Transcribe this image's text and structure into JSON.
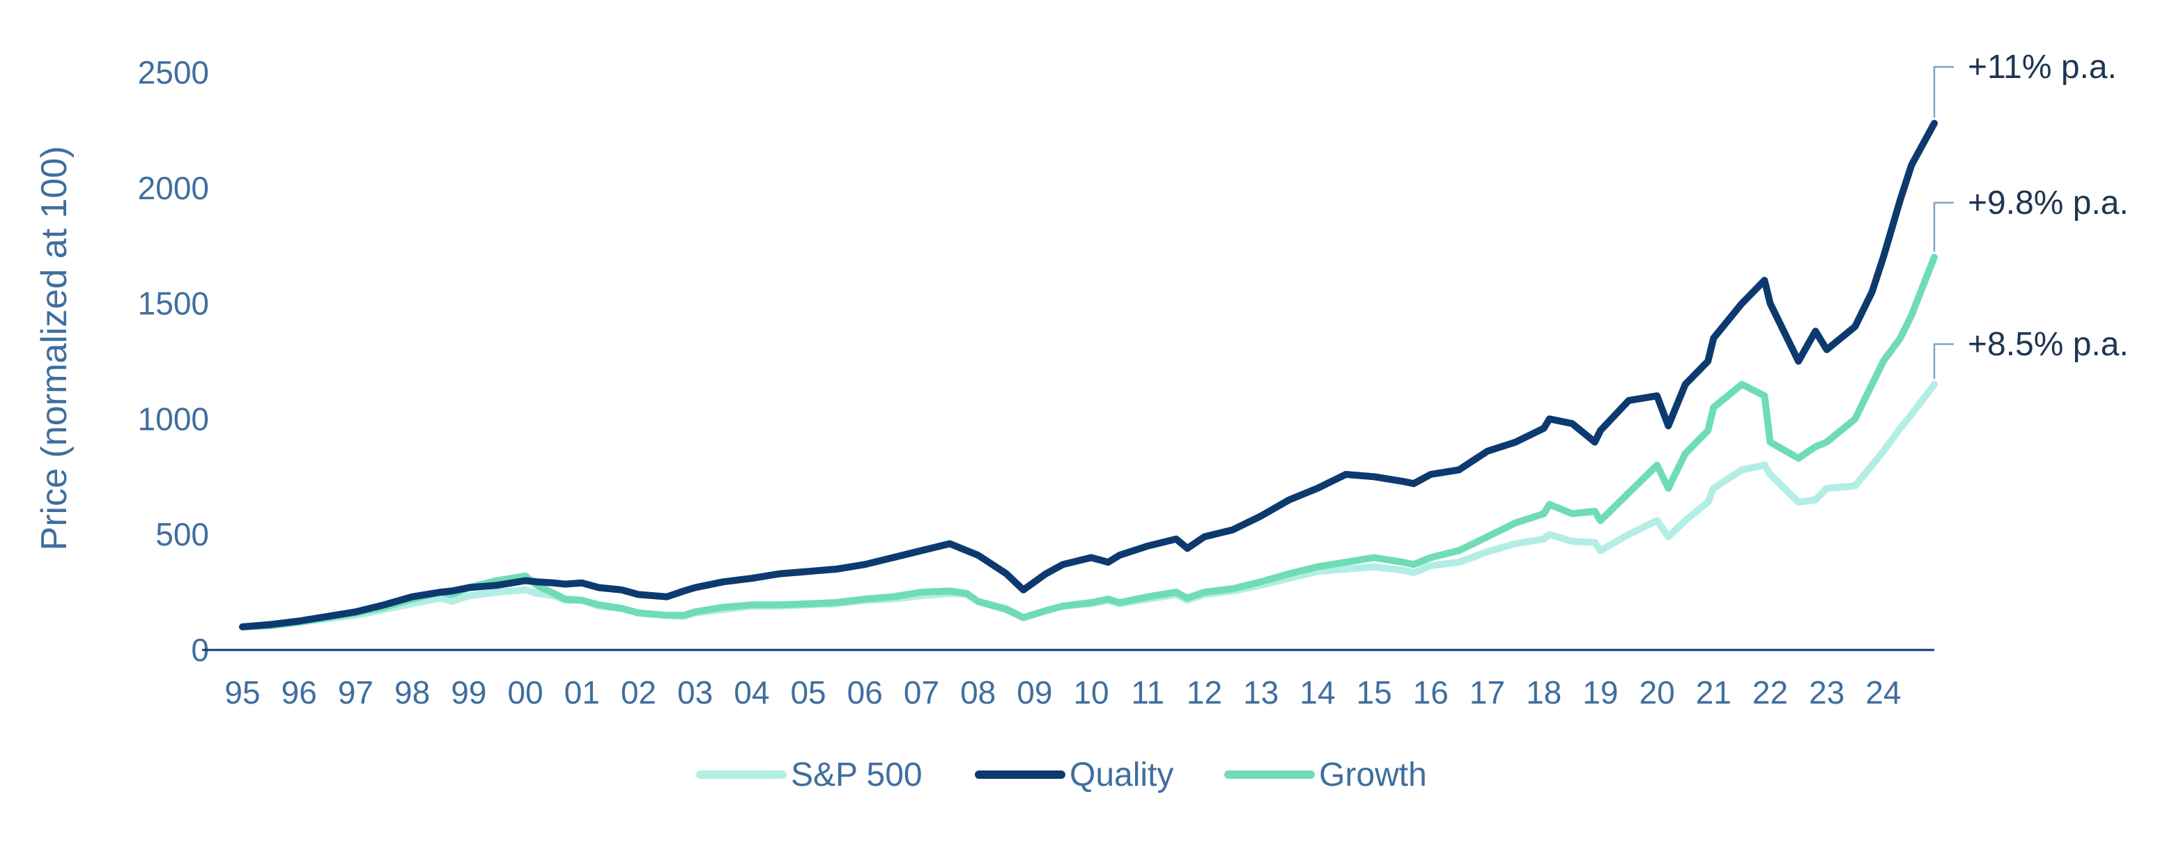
{
  "chart_data": {
    "type": "line",
    "title": "",
    "xlabel": "",
    "ylabel": "Price (normalized at 100)",
    "ylim": [
      0,
      2500
    ],
    "yticks": [
      0,
      500,
      1000,
      1500,
      2000,
      2500
    ],
    "xlim": [
      1995,
      2024.9
    ],
    "xtick_labels": [
      "95",
      "96",
      "97",
      "98",
      "99",
      "00",
      "01",
      "02",
      "03",
      "04",
      "05",
      "06",
      "07",
      "08",
      "09",
      "10",
      "11",
      "12",
      "13",
      "14",
      "15",
      "16",
      "17",
      "18",
      "19",
      "20",
      "21",
      "22",
      "23",
      "24"
    ],
    "grid": false,
    "legend": "bottom-center",
    "series": [
      {
        "name": "S&P 500",
        "color": "#B2EEE4",
        "x": [
          1995.0,
          1995.5,
          1996.0,
          1996.5,
          1997.0,
          1997.5,
          1998.0,
          1998.5,
          1998.7,
          1999.0,
          1999.5,
          2000.0,
          2000.2,
          2000.5,
          2000.7,
          2001.0,
          2001.3,
          2001.7,
          2002.0,
          2002.5,
          2002.8,
          2003.0,
          2003.5,
          2004.0,
          2004.5,
          2005.0,
          2005.5,
          2006.0,
          2006.5,
          2007.0,
          2007.5,
          2007.8,
          2008.0,
          2008.5,
          2008.8,
          2009.2,
          2009.5,
          2010.0,
          2010.3,
          2010.5,
          2011.0,
          2011.5,
          2011.7,
          2012.0,
          2012.5,
          2013.0,
          2013.5,
          2014.0,
          2014.5,
          2015.0,
          2015.5,
          2015.7,
          2016.0,
          2016.5,
          2017.0,
          2017.5,
          2018.0,
          2018.1,
          2018.5,
          2018.9,
          2019.0,
          2019.5,
          2020.0,
          2020.2,
          2020.5,
          2020.9,
          2021.0,
          2021.5,
          2021.9,
          2022.0,
          2022.5,
          2022.8,
          2023.0,
          2023.5,
          2023.8,
          2024.0,
          2024.3,
          2024.5,
          2024.9
        ],
        "values": [
          100,
          110,
          120,
          135,
          150,
          175,
          200,
          225,
          210,
          235,
          250,
          260,
          245,
          235,
          215,
          215,
          190,
          180,
          160,
          150,
          145,
          160,
          175,
          190,
          190,
          195,
          200,
          215,
          220,
          235,
          245,
          240,
          210,
          180,
          140,
          170,
          190,
          200,
          215,
          200,
          220,
          240,
          215,
          240,
          255,
          280,
          310,
          340,
          350,
          360,
          345,
          335,
          365,
          380,
          425,
          460,
          480,
          500,
          470,
          465,
          430,
          500,
          560,
          490,
          560,
          640,
          700,
          780,
          800,
          760,
          640,
          650,
          700,
          710,
          800,
          860,
          960,
          1020,
          1150
        ]
      },
      {
        "name": "Quality",
        "color": "#0D3A6E",
        "x": [
          1995.0,
          1995.5,
          1996.0,
          1996.5,
          1997.0,
          1997.5,
          1998.0,
          1998.5,
          1998.7,
          1999.0,
          1999.5,
          2000.0,
          2000.2,
          2000.5,
          2000.7,
          2001.0,
          2001.3,
          2001.7,
          2002.0,
          2002.5,
          2002.8,
          2003.0,
          2003.5,
          2004.0,
          2004.5,
          2005.0,
          2005.5,
          2006.0,
          2006.5,
          2007.0,
          2007.5,
          2007.8,
          2008.0,
          2008.5,
          2008.8,
          2009.2,
          2009.5,
          2010.0,
          2010.3,
          2010.5,
          2011.0,
          2011.5,
          2011.7,
          2012.0,
          2012.5,
          2013.0,
          2013.5,
          2014.0,
          2014.5,
          2015.0,
          2015.5,
          2015.7,
          2016.0,
          2016.5,
          2017.0,
          2017.5,
          2018.0,
          2018.1,
          2018.5,
          2018.9,
          2019.0,
          2019.5,
          2020.0,
          2020.2,
          2020.5,
          2020.9,
          2021.0,
          2021.5,
          2021.9,
          2022.0,
          2022.5,
          2022.8,
          2023.0,
          2023.5,
          2023.8,
          2024.0,
          2024.3,
          2024.5,
          2024.9
        ],
        "values": [
          100,
          110,
          125,
          145,
          165,
          195,
          230,
          250,
          255,
          270,
          280,
          300,
          295,
          290,
          285,
          290,
          270,
          260,
          240,
          230,
          255,
          270,
          295,
          310,
          330,
          340,
          350,
          370,
          400,
          430,
          460,
          430,
          410,
          330,
          260,
          330,
          370,
          400,
          380,
          410,
          450,
          480,
          440,
          490,
          520,
          580,
          650,
          700,
          760,
          750,
          730,
          720,
          760,
          780,
          860,
          900,
          960,
          1000,
          980,
          900,
          950,
          1080,
          1100,
          970,
          1150,
          1250,
          1350,
          1500,
          1600,
          1500,
          1250,
          1380,
          1300,
          1400,
          1550,
          1700,
          1950,
          2100,
          2280
        ]
      },
      {
        "name": "Growth",
        "color": "#6FDCB5",
        "x": [
          1995.0,
          1995.5,
          1996.0,
          1996.5,
          1997.0,
          1997.5,
          1998.0,
          1998.5,
          1998.7,
          1999.0,
          1999.5,
          2000.0,
          2000.2,
          2000.5,
          2000.7,
          2001.0,
          2001.3,
          2001.7,
          2002.0,
          2002.5,
          2002.8,
          2003.0,
          2003.5,
          2004.0,
          2004.5,
          2005.0,
          2005.5,
          2006.0,
          2006.5,
          2007.0,
          2007.5,
          2007.8,
          2008.0,
          2008.5,
          2008.8,
          2009.2,
          2009.5,
          2010.0,
          2010.3,
          2010.5,
          2011.0,
          2011.5,
          2011.7,
          2012.0,
          2012.5,
          2013.0,
          2013.5,
          2014.0,
          2014.5,
          2015.0,
          2015.5,
          2015.7,
          2016.0,
          2016.5,
          2017.0,
          2017.5,
          2018.0,
          2018.1,
          2018.5,
          2018.9,
          2019.0,
          2019.5,
          2020.0,
          2020.2,
          2020.5,
          2020.9,
          2021.0,
          2021.5,
          2021.9,
          2022.0,
          2022.5,
          2022.8,
          2023.0,
          2023.5,
          2023.8,
          2024.0,
          2024.3,
          2024.5,
          2024.9
        ],
        "values": [
          100,
          105,
          120,
          140,
          160,
          185,
          220,
          250,
          240,
          270,
          300,
          320,
          280,
          245,
          220,
          215,
          195,
          180,
          160,
          150,
          150,
          165,
          185,
          195,
          195,
          200,
          205,
          220,
          230,
          250,
          255,
          245,
          210,
          175,
          140,
          170,
          190,
          205,
          220,
          205,
          230,
          250,
          225,
          250,
          265,
          295,
          330,
          360,
          380,
          400,
          380,
          370,
          400,
          430,
          490,
          550,
          590,
          630,
          590,
          600,
          560,
          680,
          800,
          700,
          850,
          950,
          1050,
          1150,
          1100,
          900,
          830,
          880,
          900,
          1000,
          1150,
          1250,
          1350,
          1450,
          1700
        ]
      }
    ],
    "annotations": [
      {
        "series": "Quality",
        "text": "+11% p.a."
      },
      {
        "series": "Growth",
        "text": "+9.8% p.a."
      },
      {
        "series": "S&P 500",
        "text": "+8.5% p.a."
      }
    ]
  }
}
